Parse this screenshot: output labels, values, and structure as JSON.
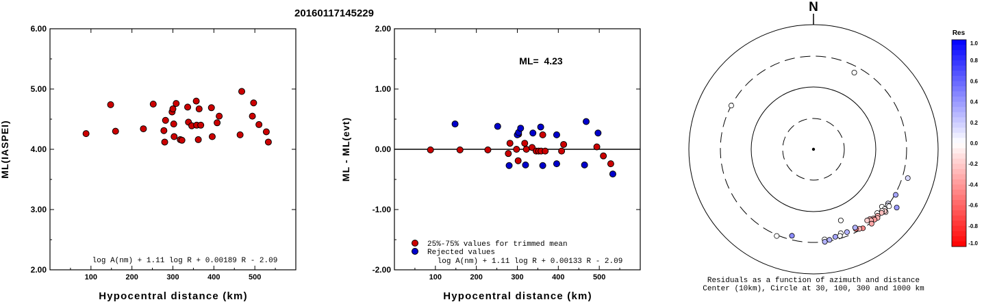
{
  "figure": {
    "title": "20160117145229"
  },
  "chart_data": [
    {
      "type": "scatter",
      "id": "ml-vs-distance",
      "title": "",
      "xlabel": "Hypocentral distance (km)",
      "ylabel": "ML(IASPEI)",
      "xlim": [
        0,
        600
      ],
      "ylim": [
        2.0,
        6.0
      ],
      "x_ticks": [
        "100",
        "200",
        "300",
        "400",
        "500"
      ],
      "x_tick_values": [
        100,
        200,
        300,
        400,
        500
      ],
      "y_ticks": [
        "2.00",
        "3.00",
        "4.00",
        "5.00",
        "6.00"
      ],
      "y_tick_values": [
        2,
        3,
        4,
        5,
        6
      ],
      "formula": "log A(nm) + 1.11 log R + 0.00189 R - 2.09",
      "marker_color": "#cc0000",
      "points": [
        {
          "x": 88,
          "y": 4.26
        },
        {
          "x": 148,
          "y": 4.74
        },
        {
          "x": 160,
          "y": 4.3
        },
        {
          "x": 228,
          "y": 4.34
        },
        {
          "x": 252,
          "y": 4.75
        },
        {
          "x": 278,
          "y": 4.31
        },
        {
          "x": 280,
          "y": 4.12
        },
        {
          "x": 282,
          "y": 4.48
        },
        {
          "x": 298,
          "y": 4.62
        },
        {
          "x": 300,
          "y": 4.67
        },
        {
          "x": 302,
          "y": 4.42
        },
        {
          "x": 303,
          "y": 4.21
        },
        {
          "x": 308,
          "y": 4.76
        },
        {
          "x": 318,
          "y": 4.16
        },
        {
          "x": 322,
          "y": 4.15
        },
        {
          "x": 336,
          "y": 4.7
        },
        {
          "x": 338,
          "y": 4.45
        },
        {
          "x": 346,
          "y": 4.39
        },
        {
          "x": 357,
          "y": 4.8
        },
        {
          "x": 358,
          "y": 4.4
        },
        {
          "x": 362,
          "y": 4.16
        },
        {
          "x": 364,
          "y": 4.67
        },
        {
          "x": 368,
          "y": 4.4
        },
        {
          "x": 394,
          "y": 4.69
        },
        {
          "x": 396,
          "y": 4.21
        },
        {
          "x": 408,
          "y": 4.44
        },
        {
          "x": 413,
          "y": 4.55
        },
        {
          "x": 464,
          "y": 4.24
        },
        {
          "x": 468,
          "y": 4.96
        },
        {
          "x": 494,
          "y": 4.55
        },
        {
          "x": 497,
          "y": 4.77
        },
        {
          "x": 510,
          "y": 4.41
        },
        {
          "x": 528,
          "y": 4.29
        },
        {
          "x": 533,
          "y": 4.12
        }
      ]
    },
    {
      "type": "scatter",
      "id": "residual-vs-distance",
      "title": "",
      "xlabel": "Hypocentral distance (km)",
      "ylabel": "ML - ML(evt)",
      "xlim": [
        0,
        600
      ],
      "ylim": [
        -2.0,
        2.0
      ],
      "x_ticks": [
        "100",
        "200",
        "300",
        "400",
        "500"
      ],
      "x_tick_values": [
        100,
        200,
        300,
        400,
        500
      ],
      "y_ticks": [
        "-2.00",
        "-1.00",
        "0.00",
        "1.00",
        "2.00"
      ],
      "y_tick_values": [
        -2,
        -1,
        0,
        1,
        2
      ],
      "reference_line": 0,
      "annotation": "ML=  4.23",
      "formula": "log A(nm) + 1.11 log R + 0.00133 R - 2.09",
      "legend": {
        "placement": "bottom-left",
        "entries": [
          {
            "label": "25%-75% values for trimmed mean",
            "color": "#cc0000"
          },
          {
            "label": "Rejected values",
            "color": "#0000cc"
          }
        ]
      },
      "series": [
        {
          "name": "25%-75% values for trimmed mean",
          "color": "#cc0000",
          "points": [
            {
              "x": 88,
              "y": -0.01
            },
            {
              "x": 160,
              "y": -0.01
            },
            {
              "x": 228,
              "y": -0.01
            },
            {
              "x": 278,
              "y": -0.07
            },
            {
              "x": 282,
              "y": 0.1
            },
            {
              "x": 298,
              "y": 0.0
            },
            {
              "x": 302,
              "y": -0.19
            },
            {
              "x": 303,
              "y": 0.25
            },
            {
              "x": 318,
              "y": 0.1
            },
            {
              "x": 322,
              "y": 0.0
            },
            {
              "x": 336,
              "y": 0.03
            },
            {
              "x": 346,
              "y": -0.03
            },
            {
              "x": 352,
              "y": -0.03
            },
            {
              "x": 358,
              "y": -0.03
            },
            {
              "x": 362,
              "y": 0.24
            },
            {
              "x": 368,
              "y": -0.03
            },
            {
              "x": 408,
              "y": -0.03
            },
            {
              "x": 413,
              "y": 0.08
            },
            {
              "x": 494,
              "y": 0.04
            },
            {
              "x": 510,
              "y": -0.11
            },
            {
              "x": 528,
              "y": -0.24
            }
          ]
        },
        {
          "name": "Rejected values",
          "color": "#0000cc",
          "points": [
            {
              "x": 148,
              "y": 0.42
            },
            {
              "x": 252,
              "y": 0.38
            },
            {
              "x": 280,
              "y": -0.27
            },
            {
              "x": 300,
              "y": 0.24
            },
            {
              "x": 303,
              "y": 0.28
            },
            {
              "x": 308,
              "y": 0.35
            },
            {
              "x": 320,
              "y": -0.26
            },
            {
              "x": 338,
              "y": 0.27
            },
            {
              "x": 357,
              "y": 0.37
            },
            {
              "x": 362,
              "y": -0.27
            },
            {
              "x": 396,
              "y": 0.24
            },
            {
              "x": 396,
              "y": -0.24
            },
            {
              "x": 464,
              "y": -0.26
            },
            {
              "x": 468,
              "y": 0.46
            },
            {
              "x": 497,
              "y": 0.27
            },
            {
              "x": 533,
              "y": -0.41
            }
          ]
        }
      ]
    },
    {
      "type": "scatter",
      "id": "azimuth-residual-map",
      "north_label": "N",
      "caption_line1": "Residuals as a function of azimuth and distance",
      "caption_line2": "Center (10km), Circle at 30, 100, 300 and 1000 km",
      "rings_km": [
        30,
        100,
        300,
        1000
      ],
      "colorbar": {
        "title": "Res",
        "range": [
          -1.0,
          1.0
        ],
        "tick_labels": [
          "1.0",
          "0.8",
          "0.6",
          "0.4",
          "0.2",
          "0.0",
          "-0.2",
          "-0.4",
          "-0.6",
          "-0.8",
          "-1.0"
        ],
        "tick_values": [
          1.0,
          0.8,
          0.6,
          0.4,
          0.2,
          0.0,
          -0.2,
          -0.4,
          -0.6,
          -0.8,
          -1.0
        ],
        "color_max": "#0000ff",
        "color_zero": "#ffffff",
        "color_min": "#ff0000"
      },
      "stations": [
        {
          "az": 298,
          "dist_km": 300,
          "res": 0.0
        },
        {
          "az": 28,
          "dist_km": 240,
          "res": 0.0
        },
        {
          "az": 107,
          "dist_km": 370,
          "res": 0.15
        },
        {
          "az": 119,
          "dist_km": 310,
          "res": 0.35
        },
        {
          "az": 125,
          "dist_km": 415,
          "res": 0.4
        },
        {
          "az": 126,
          "dist_km": 290,
          "res": 0.1
        },
        {
          "az": 127,
          "dist_km": 300,
          "res": 0.05
        },
        {
          "az": 127,
          "dist_km": 318,
          "res": 0.0
        },
        {
          "az": 130,
          "dist_km": 262,
          "res": 0.0
        },
        {
          "az": 130,
          "dist_km": 298,
          "res": 0.0
        },
        {
          "az": 131,
          "dist_km": 330,
          "res": -0.1
        },
        {
          "az": 131,
          "dist_km": 312,
          "res": -0.2
        },
        {
          "az": 132,
          "dist_km": 290,
          "res": -0.05
        },
        {
          "az": 133,
          "dist_km": 300,
          "res": -0.25
        },
        {
          "az": 135,
          "dist_km": 270,
          "res": 0.0
        },
        {
          "az": 136,
          "dist_km": 292,
          "res": -0.3
        },
        {
          "az": 137,
          "dist_km": 308,
          "res": -0.3
        },
        {
          "az": 139,
          "dist_km": 284,
          "res": -0.25
        },
        {
          "az": 139,
          "dist_km": 300,
          "res": -0.4
        },
        {
          "az": 141,
          "dist_km": 266,
          "res": -0.25
        },
        {
          "az": 141,
          "dist_km": 282,
          "res": -0.3
        },
        {
          "az": 142,
          "dist_km": 315,
          "res": -0.35
        },
        {
          "az": 143,
          "dist_km": 260,
          "res": -0.2
        },
        {
          "az": 148,
          "dist_km": 300,
          "res": -0.45
        },
        {
          "az": 150,
          "dist_km": 286,
          "res": -0.3
        },
        {
          "az": 152,
          "dist_km": 270,
          "res": -0.5
        },
        {
          "az": 152,
          "dist_km": 256,
          "res": 0.3
        },
        {
          "az": 158,
          "dist_km": 262,
          "res": 0.3
        },
        {
          "az": 159,
          "dist_km": 164,
          "res": 0.0
        },
        {
          "az": 162,
          "dist_km": 252,
          "res": 0.0
        },
        {
          "az": 163,
          "dist_km": 274,
          "res": 0.0
        },
        {
          "az": 166,
          "dist_km": 270,
          "res": 0.35
        },
        {
          "az": 170,
          "dist_km": 288,
          "res": 0.3
        },
        {
          "az": 173,
          "dist_km": 276,
          "res": 0.0
        },
        {
          "az": 173,
          "dist_km": 300,
          "res": 0.3
        },
        {
          "az": 194,
          "dist_km": 260,
          "res": 0.45
        },
        {
          "az": 203,
          "dist_km": 312,
          "res": 0.0
        }
      ]
    }
  ]
}
